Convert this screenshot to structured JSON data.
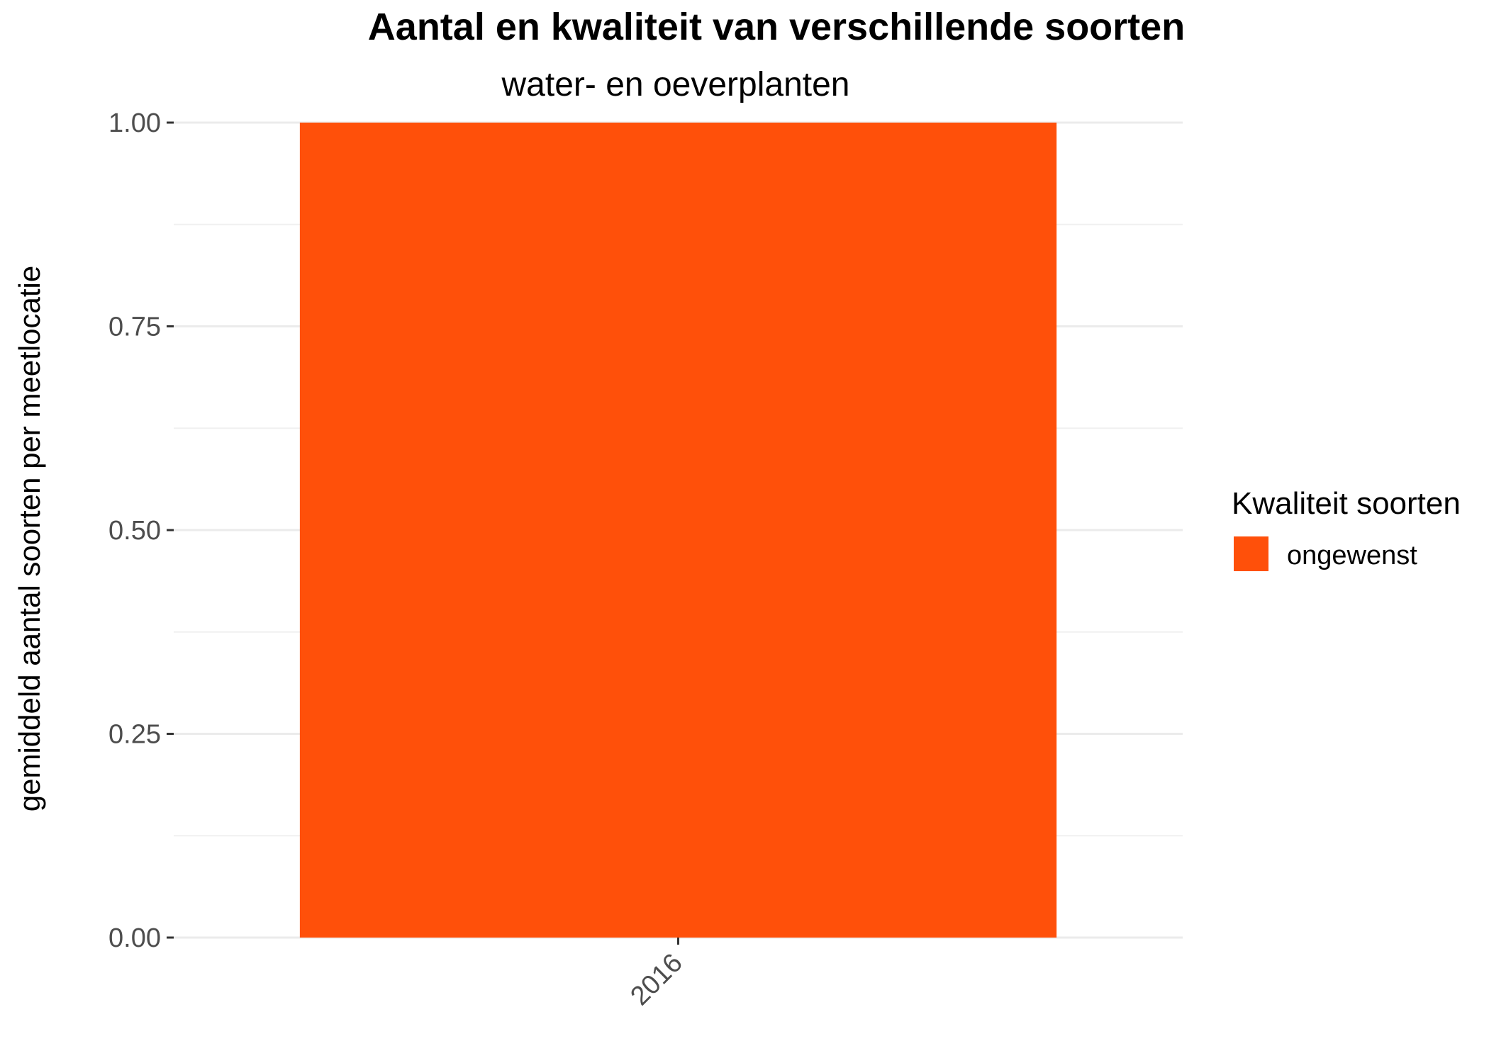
{
  "chart_data": {
    "type": "bar",
    "title": "Aantal en kwaliteit van verschillende soorten",
    "subtitle": "water- en oeverplanten",
    "xlabel": "",
    "ylabel": "gemiddeld aantal soorten per meetlocatie",
    "categories": [
      "2016"
    ],
    "series": [
      {
        "name": "ongewenst",
        "values": [
          1.0
        ],
        "color": "#FF500A"
      }
    ],
    "ylim": [
      0,
      1
    ],
    "yticks": [
      "0.00",
      "0.25",
      "0.50",
      "0.75",
      "1.00"
    ],
    "grid": true,
    "legend": {
      "title": "Kwaliteit soorten",
      "position": "right"
    }
  }
}
